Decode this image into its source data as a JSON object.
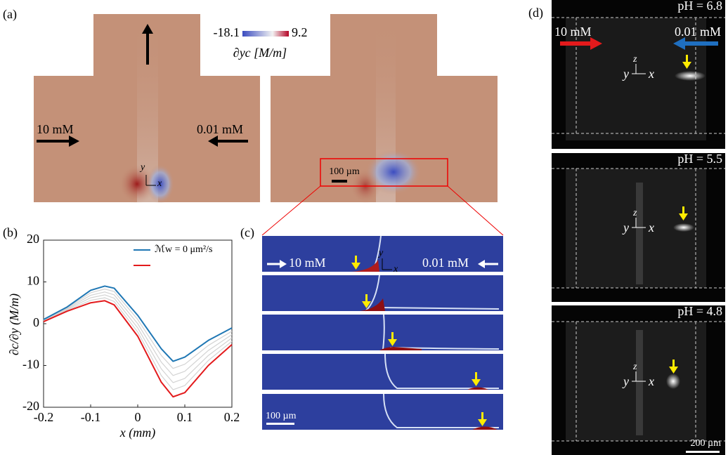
{
  "panel_a": {
    "label": "(a)",
    "colorbar": {
      "min": -18.1,
      "max": 9.2,
      "label": "∂yc [M/m]"
    },
    "inlet_left": "10 mM",
    "inlet_right": "0.01 mM",
    "axis_y": "y",
    "axis_x": "x",
    "scale_bar": "100 µm"
  },
  "chart_data": {
    "type": "line",
    "panel_label": "(b)",
    "xlabel": "x (mm)",
    "ylabel": "∂c/∂y (M/m)",
    "x": [
      -0.2,
      -0.15,
      -0.1,
      -0.07,
      -0.05,
      0,
      0.05,
      0.075,
      0.1,
      0.15,
      0.2
    ],
    "series": [
      {
        "color": "#d3d3d3",
        "values": [
          0.9,
          3.8,
          7.4,
          8.3,
          7.7,
          1,
          -7.6,
          -10.7,
          -9.7,
          -5.2,
          -1.8
        ]
      },
      {
        "color": "#d3d3d3",
        "values": [
          0.8,
          3.6,
          6.8,
          7.6,
          6.9,
          0,
          -9.2,
          -12.4,
          -11.4,
          -6.4,
          -2.6
        ]
      },
      {
        "color": "#d3d3d3",
        "values": [
          0.7,
          3.4,
          6.2,
          6.9,
          6.1,
          -1,
          -10.8,
          -14.1,
          -13.1,
          -7.6,
          -3.4
        ]
      },
      {
        "color": "#d3d3d3",
        "values": [
          0.6,
          3.2,
          5.6,
          6.2,
          5.3,
          -2,
          -12.4,
          -15.8,
          -14.8,
          -8.8,
          -4.2
        ]
      },
      {
        "name": "ℳw = 0 μm²/s",
        "color": "#1f77b4",
        "values": [
          1,
          4,
          8,
          9,
          8.5,
          2,
          -6,
          -9,
          -8,
          -4,
          -1
        ]
      },
      {
        "color": "#e31a1c",
        "values": [
          0.5,
          3,
          5,
          5.5,
          4.5,
          -3,
          -14,
          -17.5,
          -16.5,
          -10,
          -5
        ]
      }
    ],
    "xlim": [
      -0.2,
      0.2
    ],
    "xticks": [
      -0.2,
      -0.1,
      0,
      0.1,
      0.2
    ],
    "ylim": [
      -20,
      20
    ],
    "yticks": [
      -20,
      -10,
      0,
      10,
      20
    ],
    "grid": false
  },
  "panel_c": {
    "label": "(c)",
    "inlet_left": "10 mM",
    "inlet_right": "0.01 mM",
    "axis_y": "y",
    "axis_x": "x",
    "scale_bar": "100 µm"
  },
  "panel_d": {
    "label": "(d)",
    "inlet_left": "10 mM",
    "inlet_right": "0.01 mM",
    "images": [
      {
        "ph": "pH = 6.8"
      },
      {
        "ph": "pH = 5.5"
      },
      {
        "ph": "pH = 4.8"
      }
    ],
    "axis_y": "y",
    "axis_z": "z",
    "axis_x": "x",
    "scale_bar": "200 µm"
  }
}
